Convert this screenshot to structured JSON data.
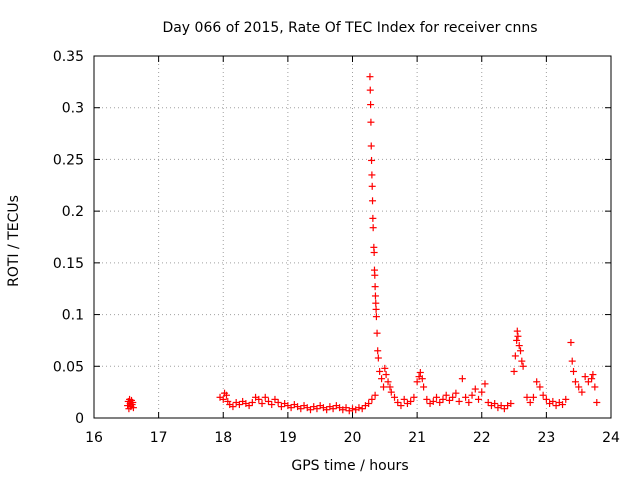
{
  "chart_data": {
    "type": "scatter",
    "title": "Day 066 of 2015, Rate Of TEC Index for receiver cnns",
    "xlabel": "GPS time / hours",
    "ylabel": "ROTI / TECUs",
    "xlim": [
      16,
      24
    ],
    "ylim": [
      0,
      0.35
    ],
    "xticks": [
      16,
      17,
      18,
      19,
      20,
      21,
      22,
      23,
      24
    ],
    "yticks": [
      0,
      0.05,
      0.1,
      0.15,
      0.2,
      0.25,
      0.3,
      0.35
    ],
    "xtick_labels": [
      "16",
      "17",
      "18",
      "19",
      "20",
      "21",
      "22",
      "23",
      "24"
    ],
    "ytick_labels": [
      "0",
      "0.05",
      "0.1",
      "0.15",
      "0.2",
      "0.25",
      "0.3",
      "0.35"
    ],
    "grid": true,
    "marker": "+",
    "marker_color": "#ff0000",
    "series": [
      {
        "name": "ROTI",
        "points": [
          [
            16.52,
            0.012
          ],
          [
            16.53,
            0.016
          ],
          [
            16.54,
            0.009
          ],
          [
            16.55,
            0.018
          ],
          [
            16.56,
            0.014
          ],
          [
            16.57,
            0.011
          ],
          [
            16.58,
            0.017
          ],
          [
            16.59,
            0.013
          ],
          [
            16.6,
            0.015
          ],
          [
            16.61,
            0.01
          ],
          [
            17.95,
            0.02
          ],
          [
            18.0,
            0.018
          ],
          [
            18.02,
            0.024
          ],
          [
            18.05,
            0.022
          ],
          [
            18.07,
            0.016
          ],
          [
            18.1,
            0.013
          ],
          [
            18.15,
            0.011
          ],
          [
            18.2,
            0.015
          ],
          [
            18.25,
            0.013
          ],
          [
            18.3,
            0.016
          ],
          [
            18.35,
            0.014
          ],
          [
            18.4,
            0.012
          ],
          [
            18.45,
            0.015
          ],
          [
            18.5,
            0.02
          ],
          [
            18.55,
            0.018
          ],
          [
            18.6,
            0.014
          ],
          [
            18.65,
            0.02
          ],
          [
            18.7,
            0.016
          ],
          [
            18.75,
            0.013
          ],
          [
            18.8,
            0.018
          ],
          [
            18.85,
            0.015
          ],
          [
            18.9,
            0.011
          ],
          [
            18.95,
            0.014
          ],
          [
            19.0,
            0.012
          ],
          [
            19.05,
            0.01
          ],
          [
            19.1,
            0.013
          ],
          [
            19.15,
            0.011
          ],
          [
            19.2,
            0.009
          ],
          [
            19.25,
            0.012
          ],
          [
            19.3,
            0.01
          ],
          [
            19.35,
            0.008
          ],
          [
            19.4,
            0.011
          ],
          [
            19.45,
            0.009
          ],
          [
            19.5,
            0.012
          ],
          [
            19.55,
            0.01
          ],
          [
            19.6,
            0.008
          ],
          [
            19.65,
            0.011
          ],
          [
            19.7,
            0.009
          ],
          [
            19.75,
            0.012
          ],
          [
            19.8,
            0.01
          ],
          [
            19.85,
            0.008
          ],
          [
            19.9,
            0.01
          ],
          [
            19.95,
            0.007
          ],
          [
            20.0,
            0.009
          ],
          [
            20.05,
            0.008
          ],
          [
            20.1,
            0.01
          ],
          [
            20.15,
            0.009
          ],
          [
            20.2,
            0.012
          ],
          [
            20.25,
            0.014
          ],
          [
            20.3,
            0.018
          ],
          [
            20.35,
            0.022
          ],
          [
            20.27,
            0.33
          ],
          [
            20.275,
            0.317
          ],
          [
            20.28,
            0.303
          ],
          [
            20.285,
            0.286
          ],
          [
            20.29,
            0.263
          ],
          [
            20.295,
            0.249
          ],
          [
            20.3,
            0.235
          ],
          [
            20.305,
            0.224
          ],
          [
            20.31,
            0.21
          ],
          [
            20.315,
            0.193
          ],
          [
            20.32,
            0.184
          ],
          [
            20.33,
            0.165
          ],
          [
            20.335,
            0.16
          ],
          [
            20.34,
            0.143
          ],
          [
            20.345,
            0.138
          ],
          [
            20.35,
            0.127
          ],
          [
            20.355,
            0.118
          ],
          [
            20.36,
            0.111
          ],
          [
            20.365,
            0.105
          ],
          [
            20.37,
            0.098
          ],
          [
            20.38,
            0.082
          ],
          [
            20.39,
            0.065
          ],
          [
            20.4,
            0.058
          ],
          [
            20.42,
            0.045
          ],
          [
            20.45,
            0.038
          ],
          [
            20.48,
            0.03
          ],
          [
            20.5,
            0.048
          ],
          [
            20.52,
            0.042
          ],
          [
            20.55,
            0.035
          ],
          [
            20.58,
            0.03
          ],
          [
            20.6,
            0.025
          ],
          [
            20.65,
            0.02
          ],
          [
            20.7,
            0.015
          ],
          [
            20.75,
            0.012
          ],
          [
            20.8,
            0.018
          ],
          [
            20.85,
            0.014
          ],
          [
            20.9,
            0.016
          ],
          [
            20.95,
            0.02
          ],
          [
            21.0,
            0.035
          ],
          [
            21.03,
            0.04
          ],
          [
            21.05,
            0.044
          ],
          [
            21.08,
            0.038
          ],
          [
            21.1,
            0.03
          ],
          [
            21.15,
            0.018
          ],
          [
            21.2,
            0.014
          ],
          [
            21.25,
            0.016
          ],
          [
            21.3,
            0.02
          ],
          [
            21.35,
            0.015
          ],
          [
            21.4,
            0.018
          ],
          [
            21.45,
            0.022
          ],
          [
            21.5,
            0.017
          ],
          [
            21.55,
            0.02
          ],
          [
            21.6,
            0.024
          ],
          [
            21.65,
            0.016
          ],
          [
            21.7,
            0.038
          ],
          [
            21.75,
            0.02
          ],
          [
            21.8,
            0.015
          ],
          [
            21.85,
            0.022
          ],
          [
            21.9,
            0.028
          ],
          [
            21.95,
            0.018
          ],
          [
            22.0,
            0.025
          ],
          [
            22.05,
            0.033
          ],
          [
            22.1,
            0.015
          ],
          [
            22.15,
            0.012
          ],
          [
            22.2,
            0.014
          ],
          [
            22.25,
            0.01
          ],
          [
            22.3,
            0.012
          ],
          [
            22.35,
            0.009
          ],
          [
            22.4,
            0.012
          ],
          [
            22.45,
            0.014
          ],
          [
            22.5,
            0.045
          ],
          [
            22.52,
            0.06
          ],
          [
            22.54,
            0.075
          ],
          [
            22.55,
            0.084
          ],
          [
            22.56,
            0.079
          ],
          [
            22.58,
            0.07
          ],
          [
            22.6,
            0.065
          ],
          [
            22.62,
            0.055
          ],
          [
            22.64,
            0.05
          ],
          [
            22.7,
            0.02
          ],
          [
            22.75,
            0.015
          ],
          [
            22.8,
            0.02
          ],
          [
            22.85,
            0.035
          ],
          [
            22.9,
            0.03
          ],
          [
            22.95,
            0.022
          ],
          [
            23.0,
            0.018
          ],
          [
            23.05,
            0.014
          ],
          [
            23.1,
            0.016
          ],
          [
            23.15,
            0.012
          ],
          [
            23.2,
            0.015
          ],
          [
            23.25,
            0.013
          ],
          [
            23.3,
            0.018
          ],
          [
            23.38,
            0.073
          ],
          [
            23.4,
            0.055
          ],
          [
            23.42,
            0.045
          ],
          [
            23.45,
            0.035
          ],
          [
            23.5,
            0.03
          ],
          [
            23.55,
            0.025
          ],
          [
            23.6,
            0.04
          ],
          [
            23.65,
            0.035
          ],
          [
            23.7,
            0.038
          ],
          [
            23.72,
            0.042
          ],
          [
            23.75,
            0.03
          ],
          [
            23.78,
            0.015
          ]
        ]
      }
    ]
  }
}
